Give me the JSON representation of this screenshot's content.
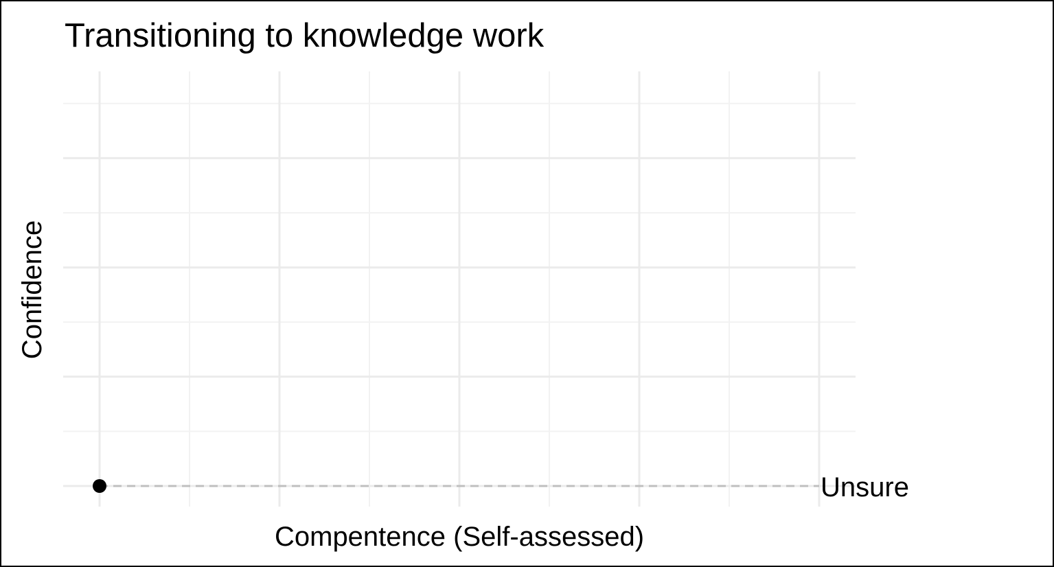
{
  "chart_data": {
    "type": "scatter",
    "title": "Transitioning to knowledge work",
    "xlabel": "Compentence (Self-assessed)",
    "ylabel": "Confidence",
    "xlim": [
      0,
      8
    ],
    "ylim": [
      0,
      7.6
    ],
    "x_major_ticks": [
      0,
      2,
      4,
      6,
      8
    ],
    "x_minor_ticks": [
      1,
      3,
      5,
      7
    ],
    "y_major_ticks": [
      0,
      2,
      4,
      6
    ],
    "y_minor_ticks": [
      1,
      3,
      5,
      7
    ],
    "tick_labels_shown": false,
    "grid": true,
    "points": [
      {
        "x": 0,
        "y": 0,
        "label": "Unsure"
      }
    ],
    "reference_lines": [
      {
        "orientation": "horizontal",
        "y": 0,
        "x_from": 0,
        "x_to": 8,
        "style": "dashed"
      }
    ],
    "colors": {
      "point": "#000000",
      "major_grid": "#ebebeb",
      "minor_grid": "#f2f2f2",
      "reference_line": "#bfbfbf"
    }
  }
}
